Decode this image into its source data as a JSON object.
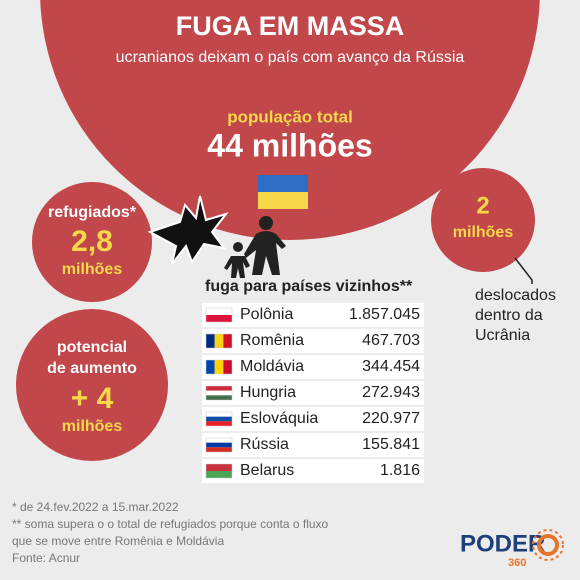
{
  "header": {
    "title": "FUGA EM MASSA",
    "subtitle": "ucranianos deixam o país com avanço da Rússia"
  },
  "population": {
    "label": "população total",
    "value": "44 milhões"
  },
  "refugees": {
    "label": "refugiados*",
    "value": "2,8",
    "unit": "milhões"
  },
  "potential": {
    "label_lines": [
      "potencial",
      "de aumento"
    ],
    "value": "+ 4",
    "unit": "milhões"
  },
  "displaced": {
    "value": "2",
    "unit": "milhões",
    "caption_lines": [
      "deslocados",
      "dentro da",
      "Ucrânia"
    ]
  },
  "table": {
    "title": "fuga para países vizinhos**",
    "rows": [
      [
        "Polônia",
        "1.857.045"
      ],
      [
        "Romênia",
        "467.703"
      ],
      [
        "Moldávia",
        "344.454"
      ],
      [
        "Hungria",
        "272.943"
      ],
      [
        "Eslováquia",
        "220.977"
      ],
      [
        "Rússia",
        "155.841"
      ],
      [
        "Belarus",
        "1.816"
      ]
    ]
  },
  "footnotes": [
    "* de 24.fev.2022 a 15.mar.2022",
    "** soma supera o o total de refugiados porque conta o fluxo",
    "que se move entre Romênia e Moldávia",
    "Fonte: Acnur"
  ],
  "logo": {
    "text": "PODER",
    "sub": "360"
  }
}
